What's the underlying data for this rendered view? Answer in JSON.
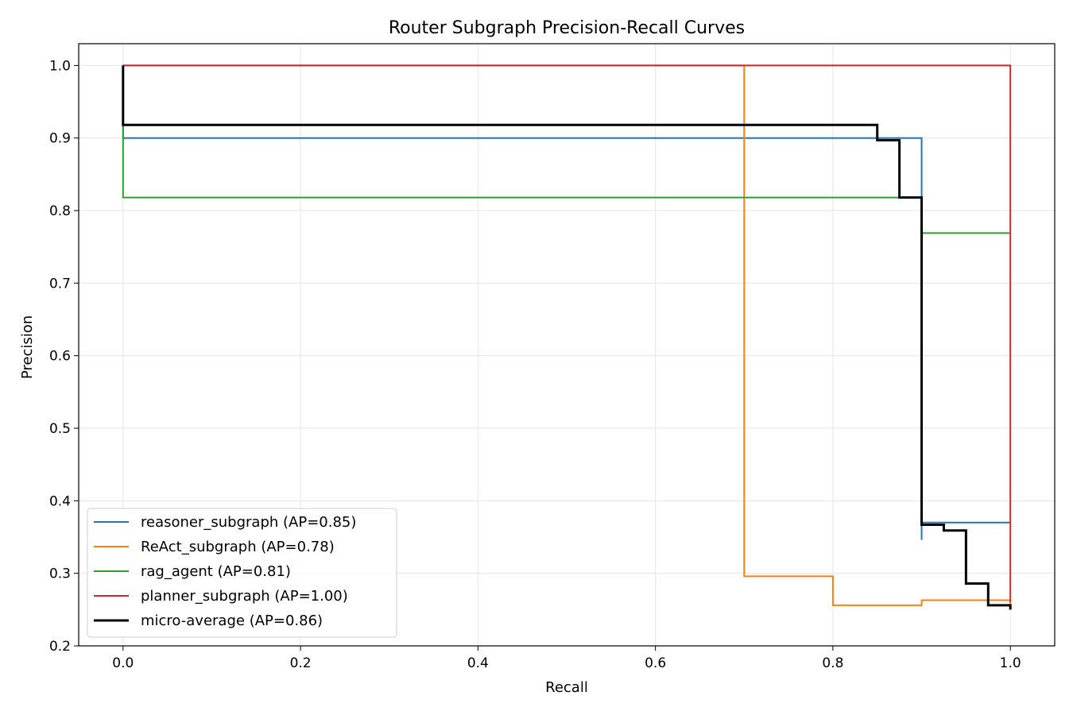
{
  "chart_data": {
    "type": "line",
    "title": "Router Subgraph Precision-Recall Curves",
    "xlabel": "Recall",
    "ylabel": "Precision",
    "xlim": [
      -0.05,
      1.05
    ],
    "ylim": [
      0.2,
      1.03
    ],
    "xticks": [
      "0.0",
      "0.2",
      "0.4",
      "0.6",
      "0.8",
      "1.0"
    ],
    "xtick_values": [
      0.0,
      0.2,
      0.4,
      0.6,
      0.8,
      1.0
    ],
    "yticks": [
      "0.2",
      "0.3",
      "0.4",
      "0.5",
      "0.6",
      "0.7",
      "0.8",
      "0.9",
      "1.0"
    ],
    "ytick_values": [
      0.2,
      0.3,
      0.4,
      0.5,
      0.6,
      0.7,
      0.8,
      0.9,
      1.0
    ],
    "grid": true,
    "legend_position": "lower-left",
    "step": true,
    "series": [
      {
        "name": "reasoner_subgraph (AP=0.85)",
        "color": "#1f77b4",
        "width": 2,
        "recall": [
          1.0,
          1.0,
          0.9,
          0.9,
          0.9,
          0.0,
          0.0
        ],
        "precision": [
          0.37,
          0.37,
          0.37,
          0.346,
          0.9,
          0.9,
          1.0
        ]
      },
      {
        "name": "ReAct_subgraph (AP=0.78)",
        "color": "#ff7f0e",
        "width": 2,
        "recall": [
          1.0,
          1.0,
          0.9,
          0.9,
          0.8,
          0.8,
          0.7,
          0.7,
          0.0,
          0.0
        ],
        "precision": [
          0.25,
          0.263,
          0.263,
          0.256,
          0.256,
          0.296,
          0.296,
          1.0,
          1.0,
          1.0
        ]
      },
      {
        "name": "rag_agent (AP=0.81)",
        "color": "#2ca02c",
        "width": 2,
        "recall": [
          1.0,
          1.0,
          0.9,
          0.9,
          0.0,
          0.0
        ],
        "precision": [
          0.769,
          0.769,
          0.769,
          0.818,
          0.818,
          1.0
        ]
      },
      {
        "name": "planner_subgraph (AP=1.00)",
        "color": "#d62728",
        "width": 2,
        "recall": [
          1.0,
          1.0,
          0.0
        ],
        "precision": [
          0.26,
          1.0,
          1.0
        ]
      },
      {
        "name": "micro-average (AP=0.86)",
        "color": "#000000",
        "width": 3,
        "recall": [
          1.0,
          1.0,
          0.975,
          0.975,
          0.95,
          0.95,
          0.925,
          0.925,
          0.9,
          0.9,
          0.875,
          0.875,
          0.85,
          0.85,
          0.0,
          0.0
        ],
        "precision": [
          0.25,
          0.256,
          0.256,
          0.286,
          0.286,
          0.359,
          0.359,
          0.367,
          0.367,
          0.818,
          0.818,
          0.897,
          0.897,
          0.918,
          0.918,
          1.0
        ]
      }
    ]
  }
}
